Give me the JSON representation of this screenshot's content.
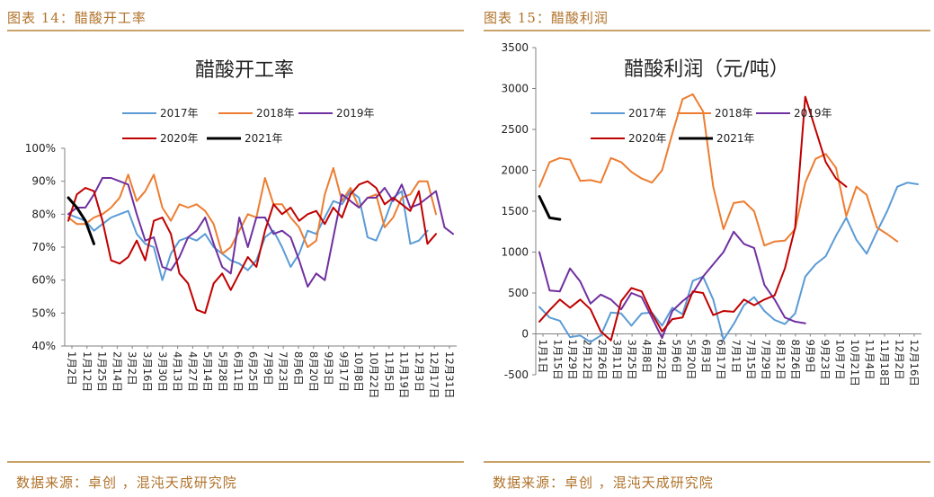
{
  "left": {
    "caption": "图表 14：醋酸开工率",
    "source": "数据来源：卓创 ，混沌天成研究院",
    "chart_data": {
      "type": "line",
      "title": "醋酸开工率",
      "xlabel": "",
      "ylabel": "",
      "ylim": [
        40,
        100
      ],
      "yticks": [
        "40%",
        "50%",
        "60%",
        "70%",
        "80%",
        "90%",
        "100%"
      ],
      "x_ticklabels": [
        "1月2日",
        "1月12日",
        "1月25日",
        "2月14日",
        "3月2日",
        "3月16日",
        "3月30日",
        "4月13日",
        "4月27日",
        "5月14日",
        "5月28日",
        "6月11日",
        "6月25日",
        "7月9日",
        "7月23日",
        "8月6日",
        "8月20日",
        "9月3日",
        "9月17日",
        "10月8日",
        "10月22日",
        "11月5日",
        "11月19日",
        "12月3日",
        "12月17日",
        "12月31日"
      ],
      "grid": false,
      "legend_position": "top",
      "series": [
        {
          "name": "2017年",
          "color": "#5b9bd5",
          "values": [
            80,
            79,
            78,
            75,
            77,
            79,
            80,
            81,
            74,
            71,
            70,
            60,
            68,
            72,
            73,
            72,
            74,
            70,
            68,
            66,
            65,
            63,
            66,
            73,
            75,
            70,
            64,
            68,
            75,
            74,
            79,
            84,
            83,
            87,
            85,
            73,
            72,
            78,
            85,
            87,
            71,
            72,
            75
          ]
        },
        {
          "name": "2018年",
          "color": "#ed7d31",
          "values": [
            79,
            77,
            77,
            79,
            80,
            82,
            85,
            92,
            84,
            87,
            92,
            82,
            78,
            83,
            82,
            83,
            81,
            77,
            68,
            70,
            75,
            80,
            79,
            91,
            83,
            83,
            79,
            76,
            70,
            72,
            86,
            94,
            84,
            88,
            82,
            85,
            86,
            76,
            79,
            85,
            86,
            90,
            90,
            80
          ]
        },
        {
          "name": "2019年",
          "color": "#7030a0",
          "values": [
            80,
            82,
            82,
            86,
            91,
            91,
            90,
            89,
            80,
            72,
            73,
            64,
            63,
            67,
            73,
            75,
            79,
            71,
            64,
            62,
            79,
            70,
            79,
            79,
            74,
            75,
            73,
            66,
            58,
            62,
            60,
            73,
            86,
            84,
            82,
            85,
            85,
            88,
            84,
            89,
            82,
            83,
            85,
            87,
            76,
            74
          ]
        },
        {
          "name": "2020年",
          "color": "#c00000",
          "values": [
            78,
            86,
            88,
            87,
            78,
            66,
            65,
            67,
            72,
            66,
            78,
            79,
            74,
            62,
            59,
            51,
            50,
            59,
            62,
            57,
            62,
            67,
            64,
            75,
            83,
            80,
            82,
            78,
            80,
            81,
            77,
            82,
            79,
            86,
            89,
            90,
            88,
            83,
            85,
            83,
            81,
            87,
            71,
            74
          ]
        },
        {
          "name": "2021年",
          "color": "#000000",
          "values": [
            85,
            82,
            78,
            71
          ]
        }
      ]
    }
  },
  "right": {
    "caption": "图表 15：醋酸利润",
    "source": "数据来源：卓创 ，混沌天成研究院",
    "chart_data": {
      "type": "line",
      "title": "醋酸利润（元/吨）",
      "xlabel": "",
      "ylabel": "",
      "ylim": [
        -500,
        3500
      ],
      "yticks": [
        "-500",
        "0",
        "500",
        "1000",
        "1500",
        "2000",
        "2500",
        "3000",
        "3500"
      ],
      "x_ticklabels": [
        "1月1日",
        "1月15日",
        "1月29日",
        "2月12日",
        "2月26日",
        "3月11日",
        "3月25日",
        "4月8日",
        "4月22日",
        "5月6日",
        "5月20日",
        "6月3日",
        "6月17日",
        "7月1日",
        "7月15日",
        "7月29日",
        "8月12日",
        "8月26日",
        "9月9日",
        "9月23日",
        "10月7日",
        "10月21日",
        "11月4日",
        "11月18日",
        "12月2日",
        "12月16日"
      ],
      "grid": false,
      "legend_position": "top",
      "series": [
        {
          "name": "2017年",
          "color": "#5b9bd5",
          "values": [
            330,
            200,
            160,
            -40,
            -20,
            -100,
            -20,
            260,
            250,
            100,
            250,
            260,
            100,
            320,
            240,
            650,
            700,
            420,
            -70,
            120,
            350,
            450,
            280,
            170,
            120,
            250,
            700,
            850,
            950,
            1200,
            1420,
            1150,
            980,
            1250,
            1500,
            1800,
            1850,
            1830
          ]
        },
        {
          "name": "2018年",
          "color": "#ed7d31",
          "values": [
            1800,
            2100,
            2150,
            2130,
            1870,
            1880,
            1850,
            2150,
            2100,
            1980,
            1900,
            1850,
            2000,
            2450,
            2870,
            2930,
            2720,
            1800,
            1280,
            1600,
            1620,
            1500,
            1080,
            1130,
            1140,
            1280,
            1850,
            2140,
            2200,
            2030,
            1440,
            1800,
            1700,
            1300,
            1220,
            1130
          ]
        },
        {
          "name": "2019年",
          "color": "#7030a0",
          "values": [
            1000,
            530,
            520,
            800,
            640,
            370,
            480,
            420,
            300,
            500,
            450,
            200,
            -50,
            280,
            400,
            500,
            700,
            850,
            1000,
            1250,
            1100,
            1050,
            600,
            420,
            200,
            150,
            130
          ]
        },
        {
          "name": "2020年",
          "color": "#c00000",
          "values": [
            150,
            290,
            420,
            320,
            420,
            300,
            30,
            -80,
            400,
            560,
            520,
            250,
            30,
            180,
            200,
            520,
            500,
            230,
            280,
            270,
            420,
            350,
            420,
            470,
            800,
            1300,
            2900,
            2500,
            2100,
            1900,
            1800
          ]
        },
        {
          "name": "2021年",
          "color": "#000000",
          "values": [
            1680,
            1420,
            1400
          ]
        }
      ]
    }
  }
}
